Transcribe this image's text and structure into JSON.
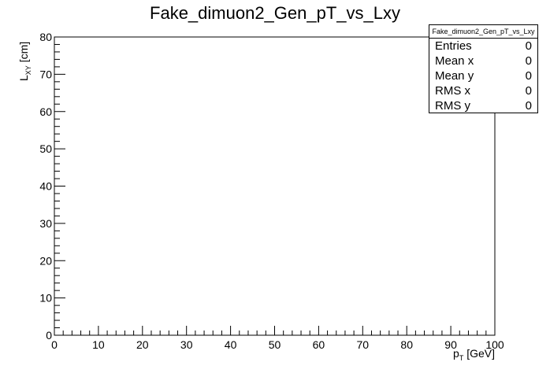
{
  "chart_data": {
    "type": "scatter",
    "title": "Fake_dimuon2_Gen_pT_vs_Lxy",
    "xlabel": {
      "main": "p",
      "sub": "T",
      "unit": " [GeV]"
    },
    "ylabel": {
      "main": "L",
      "sub": "XY",
      "unit": " [cm]"
    },
    "xlim": [
      0,
      100
    ],
    "ylim": [
      0,
      80
    ],
    "xticks": [
      "0",
      "10",
      "20",
      "30",
      "40",
      "50",
      "60",
      "70",
      "80",
      "90",
      "100"
    ],
    "yticks": [
      "0",
      "10",
      "20",
      "30",
      "40",
      "50",
      "60",
      "70",
      "80"
    ],
    "points": [],
    "stats": {
      "title": "Fake_dimuon2_Gen_pT_vs_Lxy",
      "rows": [
        {
          "label": "Entries",
          "value": "0"
        },
        {
          "label": "Mean x",
          "value": "0"
        },
        {
          "label": "Mean y",
          "value": "0"
        },
        {
          "label": "RMS x",
          "value": "0"
        },
        {
          "label": "RMS y",
          "value": "0"
        }
      ]
    }
  }
}
